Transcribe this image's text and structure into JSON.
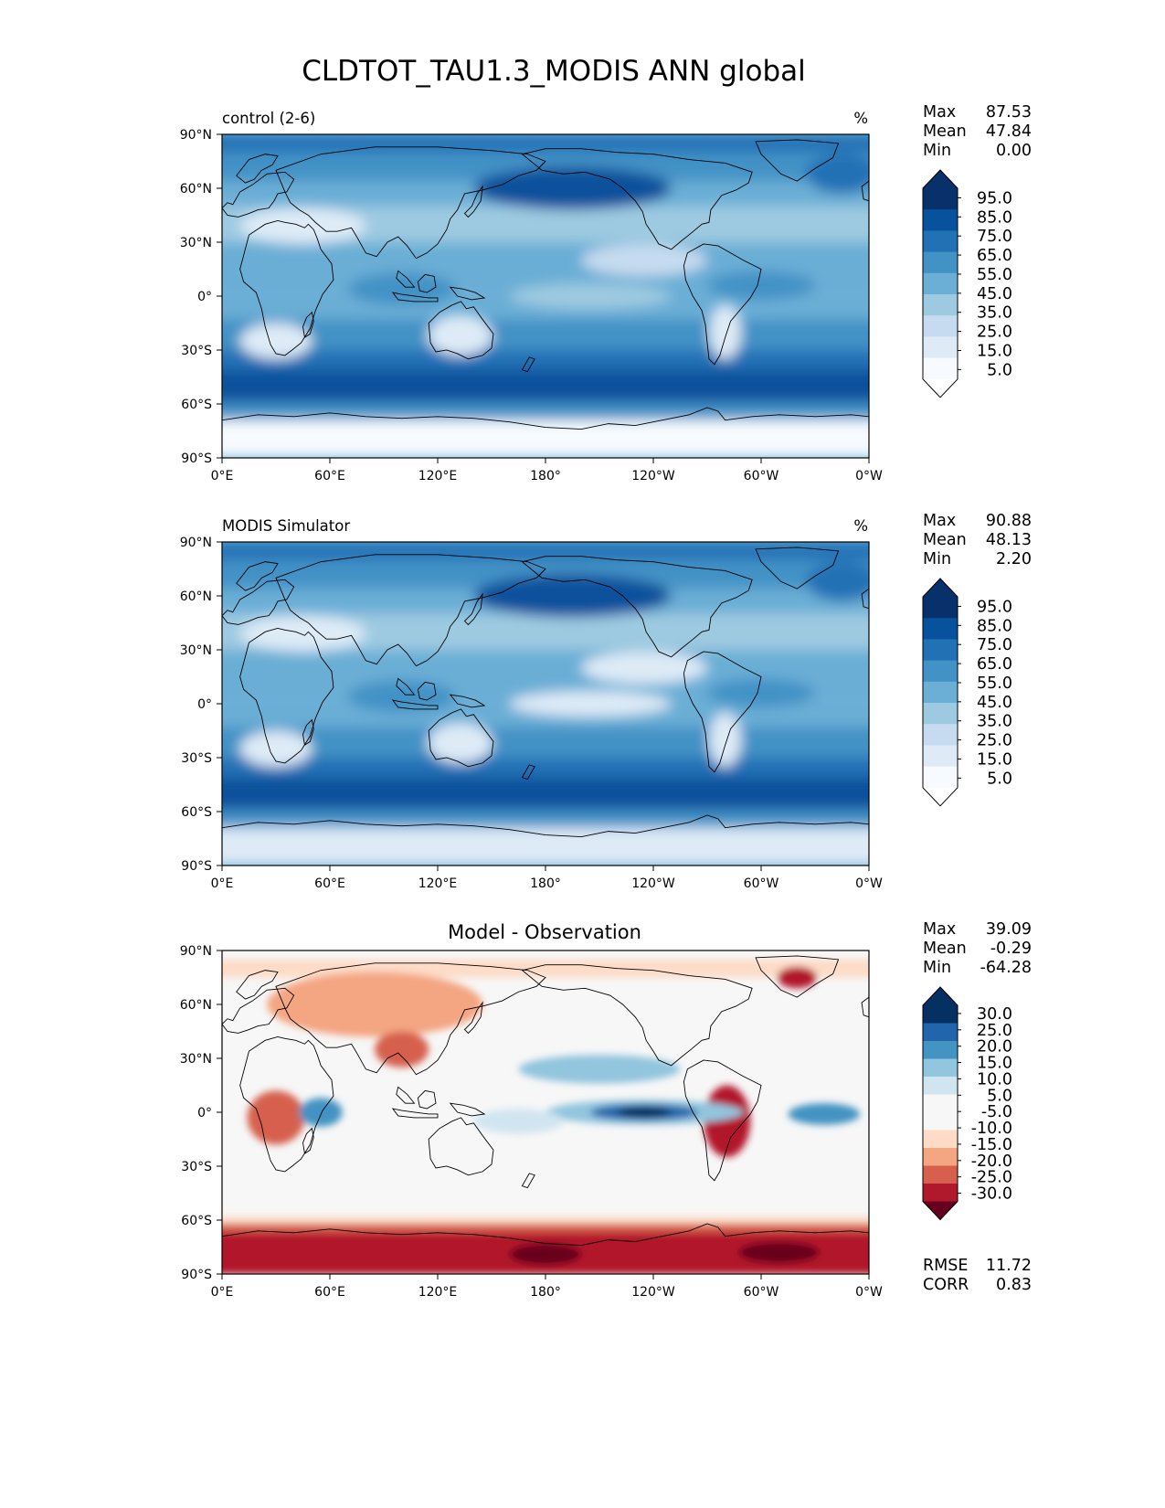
{
  "title": "CLDTOT_TAU1.3_MODIS ANN global",
  "lat_ticks": [
    "90°N",
    "60°N",
    "30°N",
    "0°",
    "30°S",
    "60°S",
    "90°S"
  ],
  "lon_ticks": [
    "0°E",
    "60°E",
    "120°E",
    "180°",
    "120°W",
    "60°W",
    "0°W"
  ],
  "colors": {
    "blues": [
      "#f7fbff",
      "#deebf7",
      "#c6dbef",
      "#9ecae1",
      "#6baed6",
      "#4292c6",
      "#2171b5",
      "#08519c",
      "#08306b"
    ],
    "diverging_neg": [
      "#fddbc7",
      "#f4a582",
      "#d6604d",
      "#b2182b",
      "#67001f"
    ],
    "diverging_pos": [
      "#f7f7f7",
      "#d1e5f0",
      "#92c5de",
      "#4393c3",
      "#2166ac",
      "#053061"
    ],
    "land_outline": "#000000"
  },
  "panels": [
    {
      "id": "control",
      "title_left": "control (2-6)",
      "title_right": "%",
      "stats": [
        {
          "label": "Max",
          "value": "87.53"
        },
        {
          "label": "Mean",
          "value": "47.84"
        },
        {
          "label": "Min",
          "value": "0.00"
        }
      ],
      "colorbar_labels": [
        "95.0",
        "85.0",
        "75.0",
        "65.0",
        "55.0",
        "45.0",
        "35.0",
        "25.0",
        "15.0",
        "5.0"
      ]
    },
    {
      "id": "obs",
      "title_left": "MODIS Simulator",
      "title_right": "%",
      "stats": [
        {
          "label": "Max",
          "value": "90.88"
        },
        {
          "label": "Mean",
          "value": "48.13"
        },
        {
          "label": "Min",
          "value": "2.20"
        }
      ],
      "colorbar_labels": [
        "95.0",
        "85.0",
        "75.0",
        "65.0",
        "55.0",
        "45.0",
        "35.0",
        "25.0",
        "15.0",
        "5.0"
      ]
    },
    {
      "id": "diff",
      "title_center": "Model - Observation",
      "stats": [
        {
          "label": "Max",
          "value": "39.09"
        },
        {
          "label": "Mean",
          "value": "-0.29"
        },
        {
          "label": "Min",
          "value": "-64.28"
        }
      ],
      "colorbar_labels": [
        "30.0",
        "25.0",
        "20.0",
        "15.0",
        "10.0",
        "5.0",
        "-5.0",
        "-10.0",
        "-15.0",
        "-20.0",
        "-25.0",
        "-30.0"
      ],
      "bottom_stats": [
        {
          "label": "RMSE",
          "value": "11.72"
        },
        {
          "label": "CORR",
          "value": "0.83"
        }
      ]
    }
  ]
}
